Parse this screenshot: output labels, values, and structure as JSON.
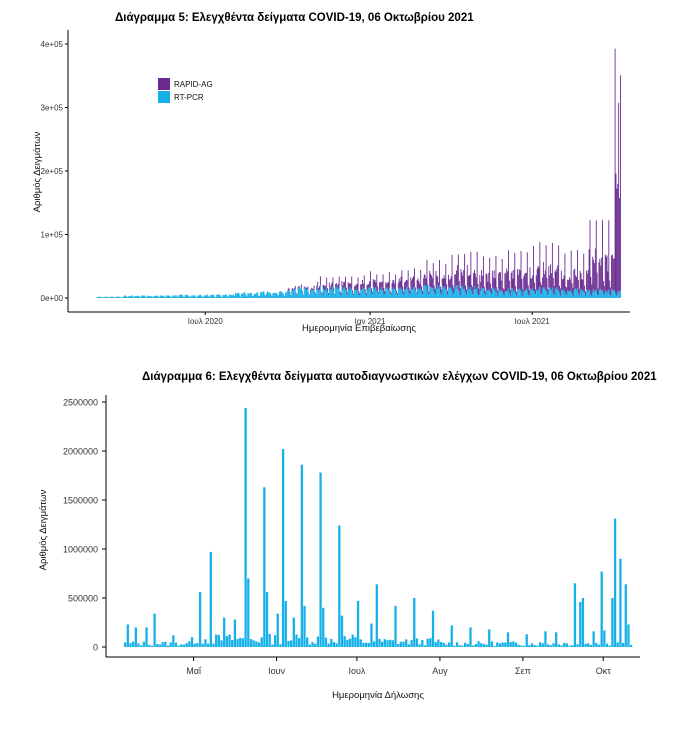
{
  "colors": {
    "rapid": "#6a2c91",
    "pcr": "#16b0e8"
  },
  "chart_data": [
    {
      "type": "bar",
      "stacked": true,
      "title": "Διάγραμμα 5: Ελεγχθέντα δείγματα COVID-19, 06 Οκτωβρίου 2021",
      "xlabel": "Ημερομηνία Επιβεβαίωσης",
      "ylabel": "Αριθμός Δειγμάτων",
      "ylim": [
        0,
        400000
      ],
      "yticks": [
        "0e+00",
        "1e+05",
        "2e+05",
        "3e+05",
        "4e+05"
      ],
      "xticks": [
        "Ιουλ 2020",
        "Ιαν 2021",
        "Ιουλ 2021"
      ],
      "legend": [
        "RAPID-AG",
        "RT-PCR"
      ],
      "legend_position": "top-left",
      "series": [
        {
          "name": "RT-PCR",
          "monthly_typical": [
            [
              "2020-03",
              2000
            ],
            [
              "2020-04",
              3500
            ],
            [
              "2020-05",
              4000
            ],
            [
              "2020-06",
              4500
            ],
            [
              "2020-07",
              5000
            ],
            [
              "2020-08",
              8000
            ],
            [
              "2020-09",
              10000
            ],
            [
              "2020-10",
              14000
            ],
            [
              "2020-11",
              16000
            ],
            [
              "2020-12",
              15000
            ],
            [
              "2021-01",
              15000
            ],
            [
              "2021-02",
              16000
            ],
            [
              "2021-03",
              18000
            ],
            [
              "2021-04",
              17000
            ],
            [
              "2021-05",
              14000
            ],
            [
              "2021-06",
              13000
            ],
            [
              "2021-07",
              15000
            ],
            [
              "2021-08",
              13000
            ],
            [
              "2021-09",
              12000
            ],
            [
              "2021-10",
              10000
            ]
          ]
        },
        {
          "name": "RAPID-AG",
          "monthly_peak": [
            [
              "2020-03",
              0
            ],
            [
              "2020-04",
              0
            ],
            [
              "2020-05",
              0
            ],
            [
              "2020-06",
              0
            ],
            [
              "2020-07",
              0
            ],
            [
              "2020-08",
              0
            ],
            [
              "2020-09",
              0
            ],
            [
              "2020-10",
              5000
            ],
            [
              "2020-11",
              15000
            ],
            [
              "2020-12",
              20000
            ],
            [
              "2021-01",
              25000
            ],
            [
              "2021-02",
              30000
            ],
            [
              "2021-03",
              40000
            ],
            [
              "2021-04",
              55000
            ],
            [
              "2021-05",
              50000
            ],
            [
              "2021-06",
              60000
            ],
            [
              "2021-07",
              70000
            ],
            [
              "2021-08",
              60000
            ],
            [
              "2021-09",
              110000
            ],
            [
              "2021-10",
              400000
            ]
          ]
        }
      ]
    },
    {
      "type": "bar",
      "title": "Διάγραμμα 6: Ελεγχθέντα δείγματα αυτοδιαγνωστικών ελέγχων COVID-19, 06 Οκτωβρίου 2021",
      "xlabel": "Ημερομηνία Δήλωσης",
      "ylabel": "Αριθμός Δειγμάτων",
      "ylim": [
        0,
        2500000
      ],
      "yticks": [
        "0",
        "500000",
        "1000000",
        "1500000",
        "2000000",
        "2500000"
      ],
      "xticks": [
        "Μαΐ",
        "Ιουν",
        "Ιουλ",
        "Αυγ",
        "Σεπ",
        "Οκτ"
      ],
      "series": [
        {
          "name": "",
          "peaks": [
            [
              "2021-04-06",
              230000
            ],
            [
              "2021-04-09",
              200000
            ],
            [
              "2021-04-13",
              200000
            ],
            [
              "2021-04-16",
              340000
            ],
            [
              "2021-04-23",
              120000
            ],
            [
              "2021-04-30",
              100000
            ],
            [
              "2021-05-03",
              560000
            ],
            [
              "2021-05-07",
              970000
            ],
            [
              "2021-05-12",
              300000
            ],
            [
              "2021-05-16",
              280000
            ],
            [
              "2021-05-20",
              2440000
            ],
            [
              "2021-05-21",
              700000
            ],
            [
              "2021-05-27",
              1630000
            ],
            [
              "2021-05-28",
              560000
            ],
            [
              "2021-06-01",
              340000
            ],
            [
              "2021-06-03",
              2020000
            ],
            [
              "2021-06-04",
              470000
            ],
            [
              "2021-06-07",
              300000
            ],
            [
              "2021-06-10",
              1860000
            ],
            [
              "2021-06-11",
              420000
            ],
            [
              "2021-06-17",
              1780000
            ],
            [
              "2021-06-18",
              400000
            ],
            [
              "2021-06-24",
              1240000
            ],
            [
              "2021-06-25",
              320000
            ],
            [
              "2021-07-01",
              470000
            ],
            [
              "2021-07-06",
              240000
            ],
            [
              "2021-07-08",
              640000
            ],
            [
              "2021-07-15",
              420000
            ],
            [
              "2021-07-22",
              500000
            ],
            [
              "2021-07-29",
              370000
            ],
            [
              "2021-08-05",
              220000
            ],
            [
              "2021-08-12",
              200000
            ],
            [
              "2021-08-19",
              180000
            ],
            [
              "2021-08-26",
              150000
            ],
            [
              "2021-09-02",
              130000
            ],
            [
              "2021-09-09",
              160000
            ],
            [
              "2021-09-13",
              150000
            ],
            [
              "2021-09-20",
              650000
            ],
            [
              "2021-09-22",
              460000
            ],
            [
              "2021-09-23",
              500000
            ],
            [
              "2021-09-27",
              160000
            ],
            [
              "2021-09-30",
              770000
            ],
            [
              "2021-10-01",
              170000
            ],
            [
              "2021-10-04",
              500000
            ],
            [
              "2021-10-05",
              1310000
            ],
            [
              "2021-10-07",
              900000
            ],
            [
              "2021-10-09",
              640000
            ],
            [
              "2021-10-10",
              230000
            ]
          ]
        }
      ]
    }
  ]
}
